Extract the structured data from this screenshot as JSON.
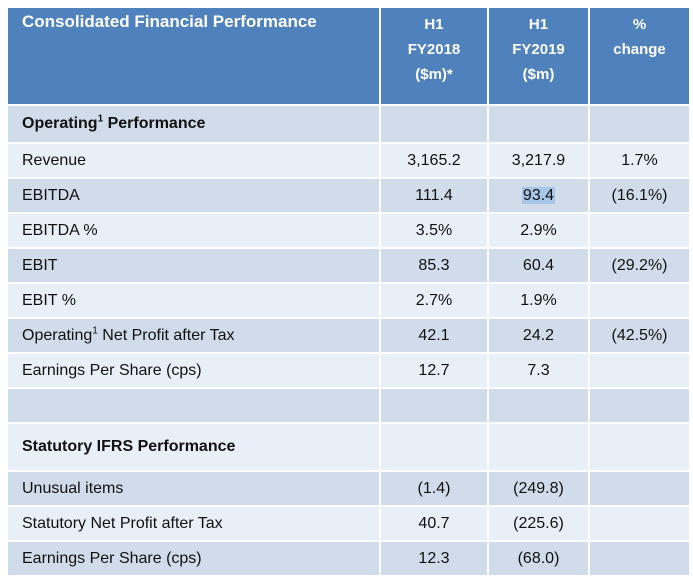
{
  "header": {
    "title": "Consolidated Financial Performance",
    "col1": [
      "H1",
      "FY2018",
      "($m)*"
    ],
    "col2": [
      "H1",
      "FY2019",
      "($m)"
    ],
    "col3": [
      "%",
      "change"
    ]
  },
  "sections": {
    "operating_label": "Operating",
    "operating_sup": "1",
    "operating_suffix": " Performance",
    "statutory_label": "Statutory IFRS Performance"
  },
  "rows": [
    {
      "label": "Revenue",
      "fy2018": "3,165.2",
      "fy2019": "3,217.9",
      "change": "1.7%"
    },
    {
      "label": "EBITDA",
      "fy2018": "111.4",
      "fy2019": "93.4",
      "change": "(16.1%)"
    },
    {
      "label": "EBITDA %",
      "fy2018": "3.5%",
      "fy2019": "2.9%",
      "change": ""
    },
    {
      "label": "EBIT",
      "fy2018": "85.3",
      "fy2019": "60.4",
      "change": "(29.2%)"
    },
    {
      "label": "EBIT %",
      "fy2018": "2.7%",
      "fy2019": "1.9%",
      "change": ""
    },
    {
      "label_pre": "Operating",
      "label_sup": "1",
      "label_post": " Net Profit after Tax",
      "fy2018": "42.1",
      "fy2019": "24.2",
      "change": "(42.5%)"
    },
    {
      "label": "Earnings Per Share (cps)",
      "fy2018": "12.7",
      "fy2019": "7.3",
      "change": ""
    }
  ],
  "statutory_rows": [
    {
      "label": "Unusual items",
      "fy2018": "(1.4)",
      "fy2019": "(249.8)",
      "change": ""
    },
    {
      "label": "Statutory Net Profit after Tax",
      "fy2018": "40.7",
      "fy2019": "(225.6)",
      "change": ""
    },
    {
      "label": "Earnings Per Share (cps)",
      "fy2018": "12.3",
      "fy2019": "(68.0)",
      "change": ""
    }
  ]
}
